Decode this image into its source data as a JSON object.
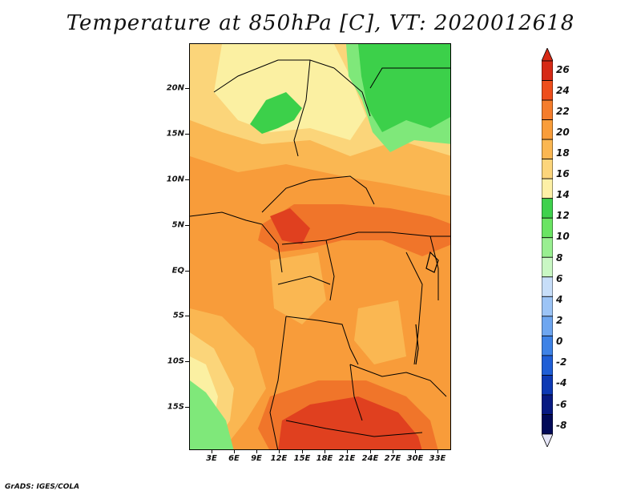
{
  "title": "Temperature at 850hPa [C], VT: 2020012618",
  "credit": "GrADS: IGES/COLA",
  "map": {
    "y_axis_labels": [
      "20N",
      "15N",
      "10N",
      "5N",
      "EQ",
      "5S",
      "10S",
      "15S"
    ],
    "x_axis_labels": [
      "3E",
      "6E",
      "9E",
      "12E",
      "15E",
      "18E",
      "21E",
      "24E",
      "27E",
      "30E",
      "33E"
    ],
    "region": "Central Africa",
    "field": "temperature",
    "colors": {
      "t12": "#3cd04a",
      "t14": "#7fe87a",
      "t16": "#fbf0a2",
      "t18": "#fbd57a",
      "t20": "#fab752",
      "t22": "#f89c3a",
      "t24": "#f0752a",
      "t26": "#e0401f",
      "border": "#000000"
    }
  },
  "colorbar": {
    "labels": [
      "26",
      "24",
      "22",
      "20",
      "18",
      "16",
      "14",
      "12",
      "10",
      "8",
      "6",
      "4",
      "2",
      "0",
      "-2",
      "-4",
      "-6",
      "-8"
    ],
    "colors": [
      "#d62a16",
      "#ee4e1c",
      "#f57d2c",
      "#f99d3a",
      "#fbb752",
      "#fcd57b",
      "#fdf0a6",
      "#3fd14d",
      "#6ae463",
      "#99ef91",
      "#c9f7c4",
      "#c7def9",
      "#9cc4f6",
      "#6ea6f0",
      "#3e82e6",
      "#1f5ed6",
      "#0d39b4",
      "#081a82",
      "#020a58"
    ]
  }
}
